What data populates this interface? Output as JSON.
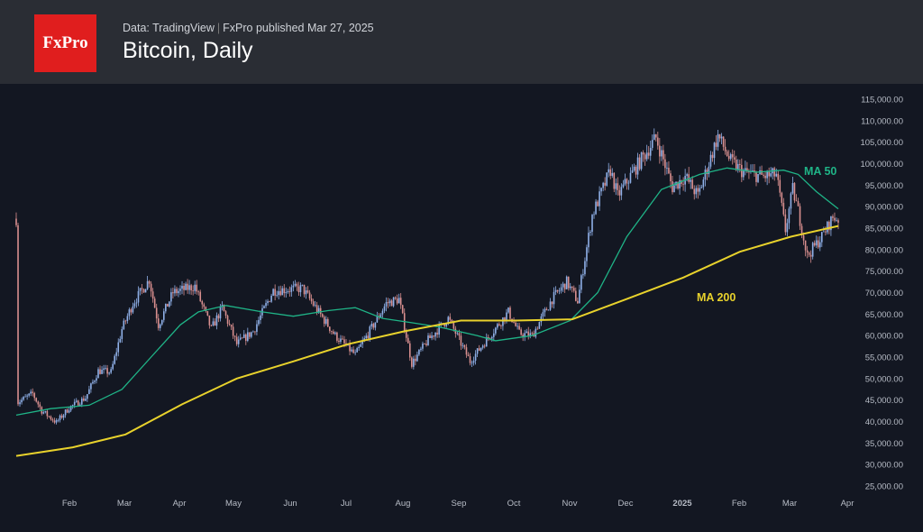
{
  "header": {
    "logo_text": "FxPro",
    "source": "Data: TradingView",
    "separator": "|",
    "publisher": "FxPro published Mar 27, 2025",
    "title": "Bitcoin, Daily"
  },
  "colors": {
    "background": "#131722",
    "header_bg": "#2a2d34",
    "logo_red": "#e01e1e",
    "up_candle": "#8fb0e8",
    "down_candle": "#d98f8f",
    "ma50": "#1fb487",
    "ma200": "#e8d22c",
    "axis_text": "#b7bcc6"
  },
  "chart_data": {
    "type": "candlestick",
    "interval": "daily",
    "x_ticks": [
      "Feb",
      "Mar",
      "Apr",
      "May",
      "Jun",
      "Jul",
      "Aug",
      "Sep",
      "Oct",
      "Nov",
      "Dec",
      "2025",
      "Feb",
      "Mar",
      "Apr"
    ],
    "y_ticks": [
      "115,000.00",
      "110,000.00",
      "105,000.00",
      "100,000.00",
      "95,000.00",
      "90,000.00",
      "85,000.00",
      "80,000.00",
      "75,000.00",
      "70,000.00",
      "65,000.00",
      "60,000.00",
      "55,000.00",
      "50,000.00",
      "45,000.00",
      "40,000.00",
      "35,000.00",
      "30,000.00",
      "25,000.00"
    ],
    "ylim": [
      25000,
      115000
    ],
    "price_path": [
      [
        "2024-01-02",
        44500
      ],
      [
        "2024-01-10",
        46500
      ],
      [
        "2024-01-15",
        42500
      ],
      [
        "2024-01-23",
        39800
      ],
      [
        "2024-01-30",
        43200
      ],
      [
        "2024-02-08",
        45500
      ],
      [
        "2024-02-15",
        51800
      ],
      [
        "2024-02-22",
        51500
      ],
      [
        "2024-02-28",
        61500
      ],
      [
        "2024-03-05",
        67500
      ],
      [
        "2024-03-14",
        73000
      ],
      [
        "2024-03-19",
        62500
      ],
      [
        "2024-03-27",
        70000
      ],
      [
        "2024-04-08",
        71500
      ],
      [
        "2024-04-17",
        61500
      ],
      [
        "2024-04-23",
        66500
      ],
      [
        "2024-05-01",
        58000
      ],
      [
        "2024-05-10",
        61000
      ],
      [
        "2024-05-21",
        70500
      ],
      [
        "2024-06-06",
        71000
      ],
      [
        "2024-06-14",
        66000
      ],
      [
        "2024-06-24",
        60000
      ],
      [
        "2024-07-05",
        55500
      ],
      [
        "2024-07-15",
        62500
      ],
      [
        "2024-07-22",
        67500
      ],
      [
        "2024-07-29",
        68500
      ],
      [
        "2024-08-05",
        53500
      ],
      [
        "2024-08-14",
        59000
      ],
      [
        "2024-08-25",
        64000
      ],
      [
        "2024-09-06",
        54000
      ],
      [
        "2024-09-15",
        59000
      ],
      [
        "2024-09-27",
        65500
      ],
      [
        "2024-10-03",
        60500
      ],
      [
        "2024-10-10",
        60000
      ],
      [
        "2024-10-21",
        68500
      ],
      [
        "2024-10-29",
        72500
      ],
      [
        "2024-11-04",
        68000
      ],
      [
        "2024-11-12",
        88000
      ],
      [
        "2024-11-22",
        98500
      ],
      [
        "2024-11-26",
        92500
      ],
      [
        "2024-12-05",
        98500
      ],
      [
        "2024-12-17",
        106000
      ],
      [
        "2024-12-26",
        94500
      ],
      [
        "2025-01-02",
        97000
      ],
      [
        "2025-01-09",
        92500
      ],
      [
        "2025-01-20",
        106500
      ],
      [
        "2025-01-27",
        100500
      ],
      [
        "2025-02-03",
        98000
      ],
      [
        "2025-02-14",
        97000
      ],
      [
        "2025-02-21",
        97500
      ],
      [
        "2025-02-26",
        84500
      ],
      [
        "2025-03-02",
        94000
      ],
      [
        "2025-03-05",
        89000
      ],
      [
        "2025-03-10",
        78500
      ],
      [
        "2025-03-18",
        83000
      ],
      [
        "2025-03-24",
        87500
      ],
      [
        "2025-03-27",
        87200
      ]
    ],
    "series": [
      {
        "name": "MA 50",
        "points": [
          [
            "2024-01-01",
            41500
          ],
          [
            "2024-01-20",
            43000
          ],
          [
            "2024-02-10",
            43800
          ],
          [
            "2024-02-28",
            47500
          ],
          [
            "2024-03-15",
            55000
          ],
          [
            "2024-03-31",
            62500
          ],
          [
            "2024-04-10",
            65500
          ],
          [
            "2024-04-25",
            67000
          ],
          [
            "2024-05-15",
            65500
          ],
          [
            "2024-06-01",
            64500
          ],
          [
            "2024-06-20",
            65800
          ],
          [
            "2024-07-05",
            66500
          ],
          [
            "2024-07-20",
            64000
          ],
          [
            "2024-08-05",
            63000
          ],
          [
            "2024-08-20",
            62000
          ],
          [
            "2024-09-10",
            60000
          ],
          [
            "2024-09-20",
            58800
          ],
          [
            "2024-10-10",
            60000
          ],
          [
            "2024-10-31",
            63500
          ],
          [
            "2024-11-15",
            70000
          ],
          [
            "2024-12-01",
            83000
          ],
          [
            "2024-12-20",
            94000
          ],
          [
            "2025-01-10",
            97500
          ],
          [
            "2025-01-25",
            99000
          ],
          [
            "2025-02-10",
            98000
          ],
          [
            "2025-02-25",
            98500
          ],
          [
            "2025-03-05",
            97500
          ],
          [
            "2025-03-15",
            93500
          ],
          [
            "2025-03-27",
            89500
          ]
        ]
      },
      {
        "name": "MA 200",
        "points": [
          [
            "2024-01-01",
            32000
          ],
          [
            "2024-02-01",
            34000
          ],
          [
            "2024-03-01",
            37000
          ],
          [
            "2024-04-01",
            44000
          ],
          [
            "2024-05-01",
            50000
          ],
          [
            "2024-06-01",
            54000
          ],
          [
            "2024-07-01",
            58000
          ],
          [
            "2024-08-01",
            61000
          ],
          [
            "2024-09-01",
            63500
          ],
          [
            "2024-10-01",
            63500
          ],
          [
            "2024-11-01",
            63800
          ],
          [
            "2024-12-01",
            68500
          ],
          [
            "2025-01-01",
            73500
          ],
          [
            "2025-02-01",
            79500
          ],
          [
            "2025-03-01",
            83000
          ],
          [
            "2025-03-27",
            85500
          ]
        ]
      }
    ]
  }
}
